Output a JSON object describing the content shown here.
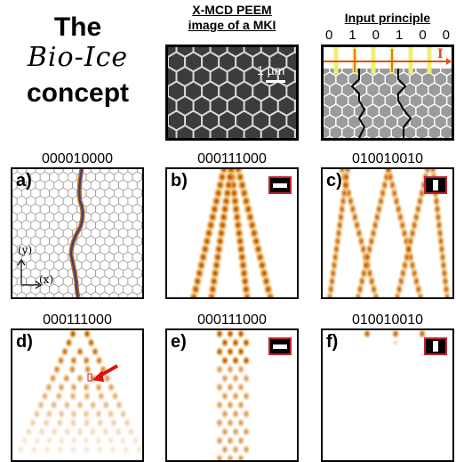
{
  "header": {
    "title_line1": "The",
    "title_line2": "Bio-Ice",
    "title_line3": "concept",
    "peem_label_line1": "X-MCD PEEM",
    "peem_label_line2": "image of a MKI",
    "scale_bar": "1 µm",
    "input_label": "Input principle",
    "input_bits": [
      "0",
      "1",
      "0",
      "1",
      "0",
      "0"
    ],
    "current_symbol": "I"
  },
  "panels": [
    {
      "letter": "a)",
      "code": "000010000",
      "kind": "lattice",
      "axis_y": "(y)",
      "axis_x": "(x)"
    },
    {
      "letter": "b)",
      "code": "000111000",
      "kind": "heat",
      "badge": "horizontal"
    },
    {
      "letter": "c)",
      "code": "010010010",
      "kind": "heat",
      "badge": "vertical"
    },
    {
      "letter": "d)",
      "code": "000111000",
      "kind": "heat"
    },
    {
      "letter": "e)",
      "code": "000111000",
      "kind": "heat",
      "badge": "horizontal"
    },
    {
      "letter": "f)",
      "code": "010010010",
      "kind": "heat",
      "badge": "vertical"
    }
  ],
  "colors": {
    "heat_strong": "#a04400",
    "heat_mid": "#e08a20",
    "heat_light": "#f8d8a0",
    "path": "#3a3a8a",
    "badge_border": "#c8232c",
    "arrow": "#e01010",
    "current_arrow": "#e05010",
    "yellow_line": "#f0f070"
  }
}
